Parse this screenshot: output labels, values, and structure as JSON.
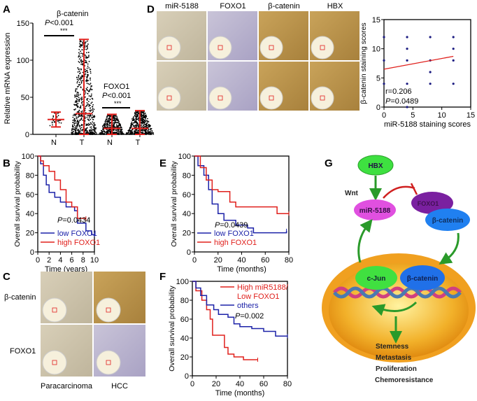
{
  "panel_letters": [
    "A",
    "B",
    "C",
    "D",
    "E",
    "F",
    "G"
  ],
  "colors": {
    "red": "#e0201c",
    "blue": "#1c22a8",
    "axis": "#000000",
    "green": "#2a9a2a",
    "orange": "#f2a21c"
  },
  "panel_c": {
    "row_labels": [
      "β-catenin",
      "FOXO1"
    ],
    "col_labels": [
      "Paracarcinoma",
      "HCC"
    ]
  },
  "panel_d": {
    "col_labels": [
      "miR-5188",
      "FOXO1",
      "β-catenin",
      "HBX"
    ]
  },
  "panel_g": {
    "hbx": "HBX",
    "wnt": "Wnt",
    "mir": "miR-5188",
    "foxo1": "FOXO1",
    "bcat_top": "β-catenin",
    "cjun": "c-Jun",
    "bcat_nuc": "β-catenin",
    "outcomes": [
      "Stemness",
      "Metastasis",
      "Proliferation",
      "Chemoresistance"
    ]
  },
  "chart_data": [
    {
      "id": "A",
      "type": "scatter",
      "ylabel": "Relative mRNA expression",
      "ylim": [
        0,
        150
      ],
      "yticks": [
        0,
        50,
        100,
        150
      ],
      "categories": [
        "N",
        "T",
        "N",
        "T"
      ],
      "groups": [
        {
          "gene": "β-catenin",
          "p_text": "<0.001",
          "stars": "***"
        },
        {
          "gene": "FOXO1",
          "p_text": "<0.001",
          "stars": "***"
        }
      ],
      "summary": [
        {
          "mean": 20,
          "low": 10,
          "high": 30
        },
        {
          "mean": 28,
          "low": 0,
          "high": 128
        },
        {
          "mean": 8,
          "low": 0,
          "high": 27
        },
        {
          "mean": 8,
          "low": 0,
          "high": 32
        }
      ]
    },
    {
      "id": "B",
      "type": "line",
      "xlabel": "Time (years)",
      "ylabel": "Overall survival probability",
      "xlim": [
        0,
        10
      ],
      "ylim": [
        0,
        100
      ],
      "xticks": [
        0,
        2,
        4,
        6,
        8,
        10
      ],
      "yticks": [
        0,
        20,
        40,
        60,
        80,
        100
      ],
      "p_text": "=0.0434",
      "series": [
        {
          "name": "low FOXO1",
          "color": "blue",
          "x": [
            0,
            0.5,
            1,
            1.5,
            2,
            3,
            4,
            5,
            6,
            6.5,
            7,
            8,
            8.5,
            9.5,
            10
          ],
          "y": [
            100,
            92,
            80,
            70,
            62,
            57,
            52,
            47,
            47,
            43,
            30,
            30,
            22,
            18,
            18
          ]
        },
        {
          "name": "high FOXO1",
          "color": "red",
          "x": [
            0,
            0.5,
            1,
            2,
            3,
            4,
            5,
            6,
            7,
            8.5
          ],
          "y": [
            100,
            95,
            90,
            84,
            75,
            65,
            52,
            47,
            35,
            35
          ]
        }
      ]
    },
    {
      "id": "E",
      "type": "line",
      "xlabel": "Time (months)",
      "ylabel": "Overall survival probability",
      "xlim": [
        0,
        80
      ],
      "ylim": [
        0,
        100
      ],
      "xticks": [
        0,
        20,
        40,
        60,
        80
      ],
      "yticks": [
        0,
        20,
        40,
        60,
        80,
        100
      ],
      "p_text": "=0.0439",
      "series": [
        {
          "name": "low FOXO1",
          "color": "blue",
          "x": [
            0,
            3,
            8,
            12,
            15,
            20,
            25,
            35,
            45,
            50,
            78
          ],
          "y": [
            100,
            90,
            80,
            65,
            50,
            40,
            33,
            28,
            25,
            20,
            22
          ]
        },
        {
          "name": "high FOXO1",
          "color": "red",
          "x": [
            0,
            5,
            10,
            15,
            20,
            30,
            35,
            65,
            70,
            80
          ],
          "y": [
            100,
            88,
            75,
            65,
            63,
            52,
            47,
            47,
            40,
            40
          ]
        }
      ]
    },
    {
      "id": "F",
      "type": "line",
      "xlabel": "Time (months)",
      "ylabel": "Overall survival probability",
      "xlim": [
        0,
        80
      ],
      "ylim": [
        0,
        100
      ],
      "xticks": [
        0,
        20,
        40,
        60,
        80
      ],
      "yticks": [
        0,
        20,
        40,
        60,
        80,
        100
      ],
      "p_text": "=0.002",
      "series": [
        {
          "name": "High miR5188/ Low FOXO1",
          "color": "red",
          "x": [
            0,
            3,
            8,
            12,
            15,
            17,
            25,
            27,
            30,
            35,
            43,
            55
          ],
          "y": [
            100,
            90,
            80,
            70,
            60,
            43,
            43,
            30,
            23,
            20,
            17,
            17
          ]
        },
        {
          "name": "others",
          "color": "blue",
          "x": [
            0,
            3,
            7,
            12,
            18,
            22,
            30,
            35,
            40,
            50,
            60,
            68,
            70,
            80
          ],
          "y": [
            100,
            93,
            85,
            75,
            70,
            65,
            62,
            55,
            52,
            50,
            47,
            47,
            42,
            42
          ]
        }
      ]
    },
    {
      "id": "D",
      "type": "scatter",
      "xlabel": "miR-5188 staining scores",
      "ylabel": "β-catenin staining scores",
      "xlim": [
        0,
        15
      ],
      "ylim": [
        0,
        15
      ],
      "xticks": [
        0,
        5,
        10,
        15
      ],
      "yticks": [
        0,
        5,
        10,
        15
      ],
      "r_text": "r=0.206",
      "p_text": "=0.0489",
      "points": {
        "x": [
          0,
          0,
          0,
          4,
          4,
          4,
          4,
          4,
          8,
          8,
          8,
          8,
          12,
          12,
          12,
          12
        ],
        "y": [
          12,
          8,
          4,
          12,
          10,
          8,
          4,
          0,
          12,
          8,
          6,
          4,
          12,
          10,
          8,
          4
        ]
      },
      "fit": {
        "x": [
          0,
          12
        ],
        "y": [
          6.5,
          8.7
        ]
      }
    }
  ]
}
